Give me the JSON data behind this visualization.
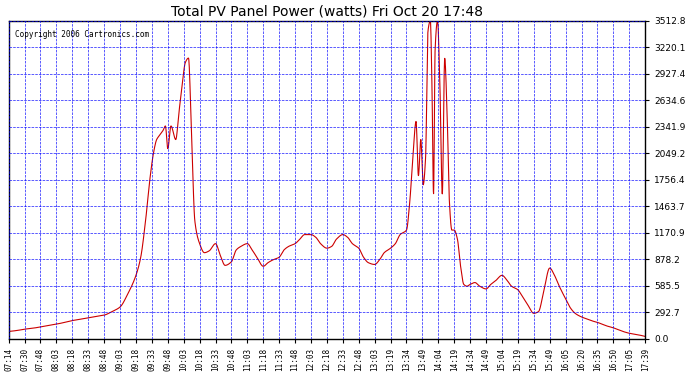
{
  "title": "Total PV Panel Power (watts) Fri Oct 20 17:48",
  "copyright": "Copyright 2006 Cartronics.com",
  "background_color": "#ffffff",
  "plot_bg_color": "#ffffff",
  "grid_color": "#0000ff",
  "line_color": "#cc0000",
  "yticks": [
    0.0,
    292.7,
    585.5,
    878.2,
    1170.9,
    1463.7,
    1756.4,
    2049.2,
    2341.9,
    2634.6,
    2927.4,
    3220.1,
    3512.8
  ],
  "ylim": [
    0,
    3512.8
  ],
  "xtick_labels": [
    "07:14",
    "07:30",
    "07:48",
    "08:03",
    "08:18",
    "08:33",
    "08:48",
    "09:03",
    "09:18",
    "09:33",
    "09:48",
    "10:03",
    "10:18",
    "10:33",
    "10:48",
    "11:03",
    "11:18",
    "11:33",
    "11:48",
    "12:03",
    "12:18",
    "12:33",
    "12:48",
    "13:03",
    "13:19",
    "13:34",
    "13:49",
    "14:04",
    "14:19",
    "14:34",
    "14:49",
    "15:04",
    "15:19",
    "15:34",
    "15:49",
    "16:05",
    "16:20",
    "16:35",
    "16:50",
    "17:05",
    "17:39"
  ]
}
